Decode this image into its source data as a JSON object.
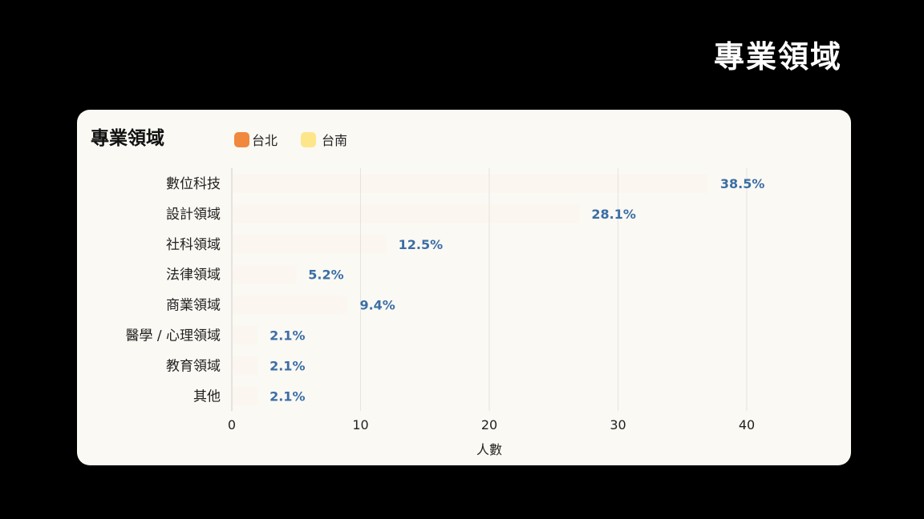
{
  "page_title": "專業領域",
  "chart_data": {
    "type": "bar",
    "orientation": "horizontal",
    "title": "專業領域",
    "legend": [
      {
        "name": "台北",
        "color": "#f0883e"
      },
      {
        "name": "台南",
        "color": "#fde68a"
      }
    ],
    "legend_placement": "top-left",
    "categories": [
      "數位科技",
      "設計領域",
      "社科領域",
      "法律領域",
      "商業領域",
      "醫學 / 心理領域",
      "教育領域",
      "其他"
    ],
    "values": [
      37,
      27,
      12,
      5,
      9,
      2,
      2,
      2
    ],
    "data_labels": [
      "38.5%",
      "28.1%",
      "12.5%",
      "5.2%",
      "9.4%",
      "2.1%",
      "2.1%",
      "2.1%"
    ],
    "xlabel": "人數",
    "xlim": [
      0,
      44
    ],
    "xticks": [
      "0",
      "10",
      "20",
      "30",
      "40"
    ],
    "grid": true,
    "label_color": "#3b6ea5"
  }
}
